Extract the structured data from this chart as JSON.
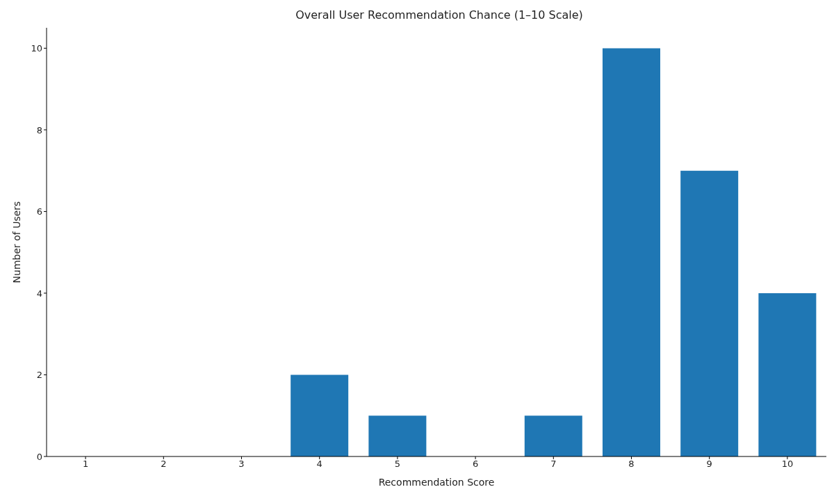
{
  "chart_data": {
    "type": "bar",
    "title": "Overall User Recommendation Chance (1–10 Scale)",
    "xlabel": "Recommendation Score",
    "ylabel": "Number of Users",
    "categories": [
      "1",
      "2",
      "3",
      "4",
      "5",
      "6",
      "7",
      "8",
      "9",
      "10"
    ],
    "values": [
      0,
      0,
      0,
      2,
      1,
      0,
      1,
      10,
      7,
      4
    ],
    "color": "#1f77b4",
    "ylim": [
      0,
      10.5
    ],
    "yticks": [
      0,
      2,
      4,
      6,
      8,
      10
    ],
    "grid": false,
    "legend": false
  }
}
